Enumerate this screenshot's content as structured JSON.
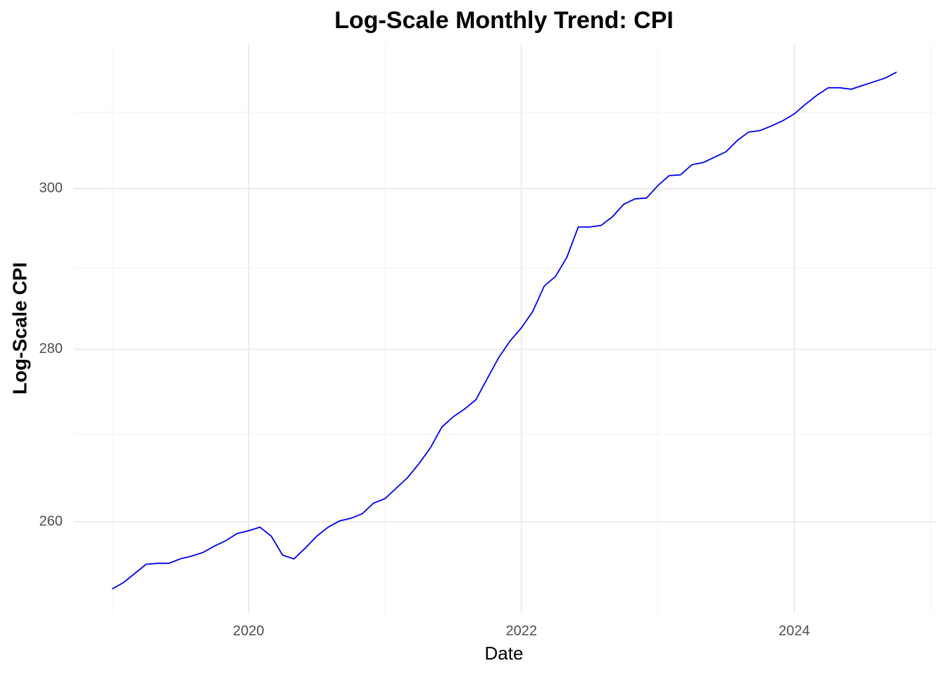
{
  "chart_data": {
    "type": "line",
    "title": "Log-Scale Monthly Trend: CPI",
    "x_label": "Date",
    "y_label": "Log-Scale CPI",
    "log_y": true,
    "grid": true,
    "x": [
      "2019-01",
      "2019-02",
      "2019-03",
      "2019-04",
      "2019-05",
      "2019-06",
      "2019-07",
      "2019-08",
      "2019-09",
      "2019-10",
      "2019-11",
      "2019-12",
      "2020-01",
      "2020-02",
      "2020-03",
      "2020-04",
      "2020-05",
      "2020-06",
      "2020-07",
      "2020-08",
      "2020-09",
      "2020-10",
      "2020-11",
      "2020-12",
      "2021-01",
      "2021-02",
      "2021-03",
      "2021-04",
      "2021-05",
      "2021-06",
      "2021-07",
      "2021-08",
      "2021-09",
      "2021-10",
      "2021-11",
      "2021-12",
      "2022-01",
      "2022-02",
      "2022-03",
      "2022-04",
      "2022-05",
      "2022-06",
      "2022-07",
      "2022-08",
      "2022-09",
      "2022-10",
      "2022-11",
      "2022-12",
      "2023-01",
      "2023-02",
      "2023-03",
      "2023-04",
      "2023-05",
      "2023-06",
      "2023-07",
      "2023-08",
      "2023-09",
      "2023-10",
      "2023-11",
      "2023-12",
      "2024-01",
      "2024-02",
      "2024-03",
      "2024-04",
      "2024-05",
      "2024-06",
      "2024-07",
      "2024-08",
      "2024-09",
      "2024-10"
    ],
    "series": [
      {
        "name": "CPI",
        "color": "#0000ee",
        "values": [
          252.6,
          253.3,
          254.3,
          255.3,
          255.4,
          255.4,
          255.9,
          256.2,
          256.6,
          257.3,
          257.9,
          258.7,
          259.0,
          259.4,
          258.4,
          256.3,
          255.9,
          257.1,
          258.4,
          259.4,
          260.1,
          260.4,
          260.9,
          262.1,
          262.6,
          263.8,
          265.0,
          266.6,
          268.4,
          270.8,
          272.0,
          272.9,
          274.0,
          276.5,
          279.0,
          281.0,
          282.6,
          284.6,
          287.7,
          288.9,
          291.3,
          295.1,
          295.1,
          295.3,
          296.4,
          298.0,
          298.7,
          298.8,
          300.4,
          301.7,
          301.8,
          303.1,
          303.4,
          304.1,
          304.8,
          306.3,
          307.4,
          307.6,
          308.2,
          308.9,
          309.8,
          311.1,
          312.3,
          313.3,
          313.3,
          313.1,
          313.6,
          314.1,
          314.6,
          315.4
        ]
      }
    ],
    "xlim": [
      2018.72,
      2025.04
    ],
    "xticks": [
      2020,
      2022,
      2024
    ],
    "xminor": [
      2019,
      2021,
      2023,
      2025
    ],
    "ylim": [
      250,
      319.2
    ],
    "yticks": [
      260,
      280,
      300
    ],
    "yminor": [
      270,
      290,
      310
    ]
  }
}
